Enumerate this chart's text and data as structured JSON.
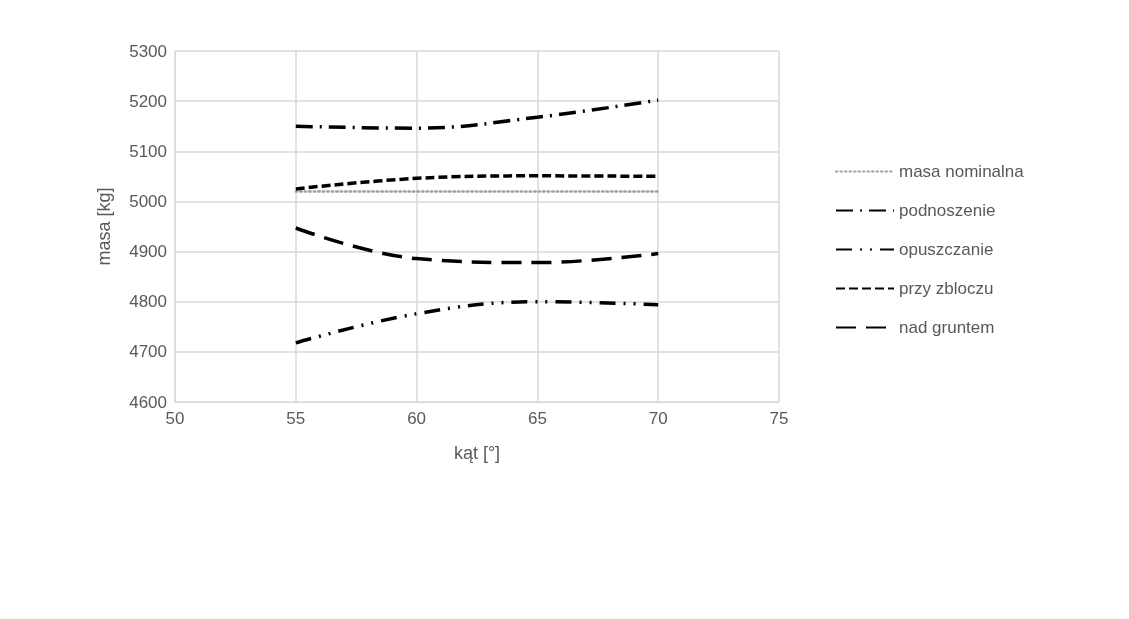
{
  "chart_data": {
    "type": "line",
    "xlabel": "kąt [°]",
    "ylabel": "masa [kg]",
    "x": [
      55,
      60,
      65,
      70
    ],
    "xlim": [
      50,
      75
    ],
    "xticks": [
      50,
      55,
      60,
      65,
      70,
      75
    ],
    "ylim": [
      4600,
      5300
    ],
    "yticks": [
      4600,
      4700,
      4800,
      4900,
      5000,
      5100,
      5200,
      5300
    ],
    "grid": true,
    "legend": "right",
    "marker": "none",
    "series": [
      {
        "name": "masa nominalna",
        "color": "#a0a0a0",
        "line_style": "dotted",
        "values": [
          5020,
          5020,
          5020,
          5020
        ]
      },
      {
        "name": "podnoszenie",
        "color": "#000000",
        "line_style": "dashdot",
        "values": [
          5150,
          5146,
          5168,
          5202
        ]
      },
      {
        "name": "opuszczanie",
        "color": "#000000",
        "line_style": "dashdotdot",
        "values": [
          4718,
          4776,
          4800,
          4794
        ]
      },
      {
        "name": "przy zbloczu",
        "color": "#000000",
        "line_style": "dashed",
        "values": [
          5025,
          5046,
          5051,
          5050
        ]
      },
      {
        "name": "nad gruntem",
        "color": "#000000",
        "line_style": "longdash",
        "values": [
          4947,
          4886,
          4878,
          4896
        ]
      }
    ]
  }
}
